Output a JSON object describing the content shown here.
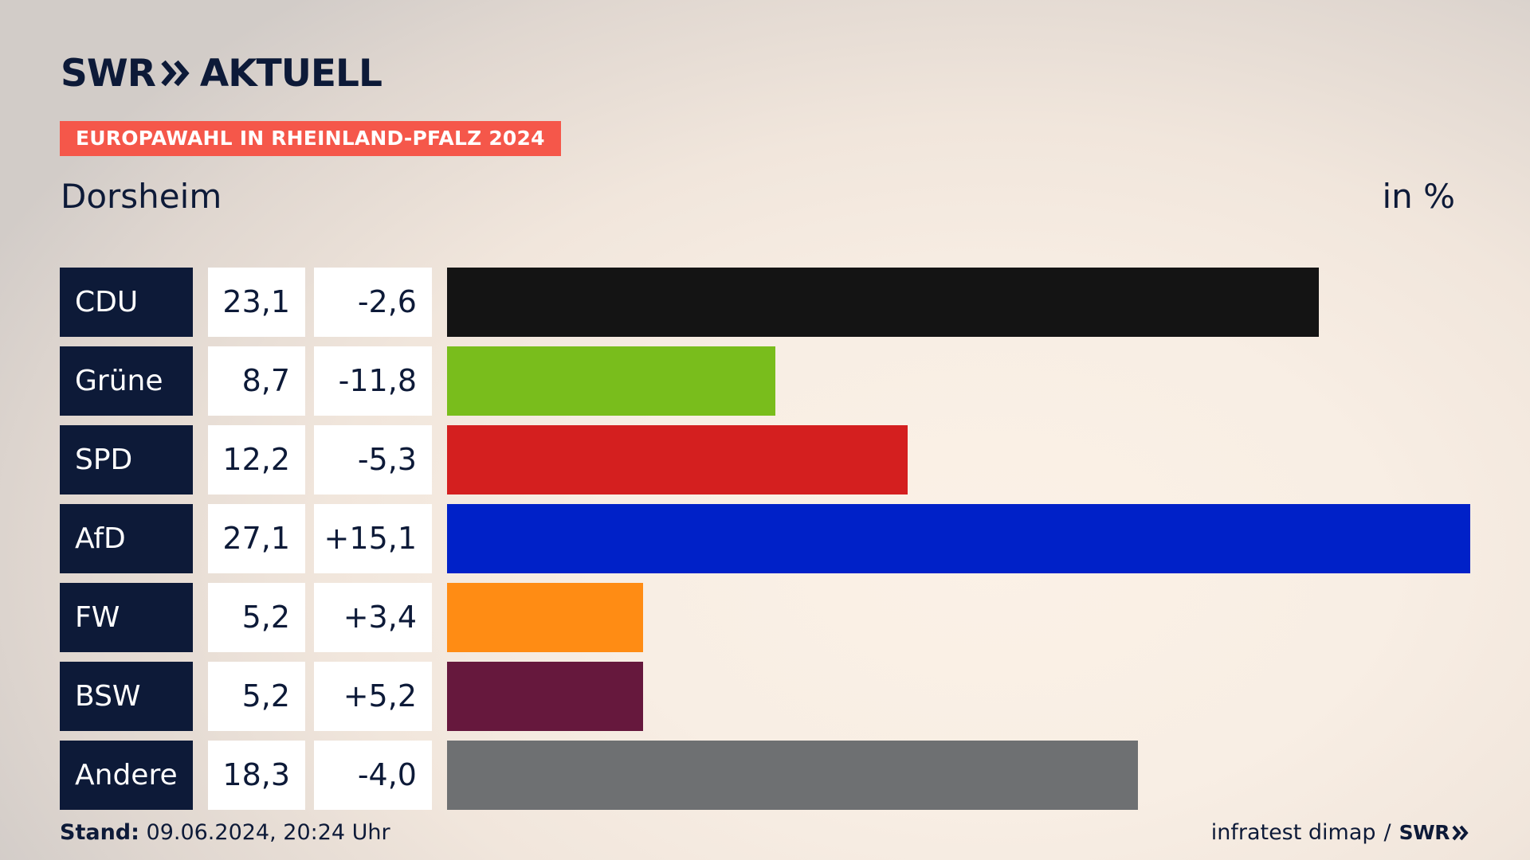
{
  "header": {
    "brand": "SWR",
    "brand_suffix": "AKTUELL",
    "tag": "EUROPAWAHL IN RHEINLAND-PFALZ 2024",
    "location": "Dorsheim",
    "unit": "in %"
  },
  "colors": {
    "navy": "#0d1a38",
    "tag": "#f5574a"
  },
  "chart_data": {
    "type": "bar",
    "orientation": "horizontal",
    "title": "Dorsheim",
    "unit": "in %",
    "xlim": [
      0,
      27.1
    ],
    "categories": [
      "CDU",
      "Grüne",
      "SPD",
      "AfD",
      "FW",
      "BSW",
      "Andere"
    ],
    "values": [
      23.1,
      8.7,
      12.2,
      27.1,
      5.2,
      5.2,
      18.3
    ],
    "value_labels": [
      "23,1",
      "8,7",
      "12,2",
      "27,1",
      "5,2",
      "5,2",
      "18,3"
    ],
    "diff_labels": [
      "-2,6",
      "-11,8",
      "-5,3",
      "+15,1",
      "+3,4",
      "+5,2",
      "-4,0"
    ],
    "bar_colors": [
      "#141414",
      "#79bd1c",
      "#d41f1f",
      "#0021c8",
      "#ff8c14",
      "#66183d",
      "#6e7072"
    ]
  },
  "footer": {
    "stand_label": "Stand:",
    "stand_value": "09.06.2024, 20:24 Uhr",
    "source": "infratest dimap",
    "separator": "/",
    "source_brand": "SWR"
  }
}
